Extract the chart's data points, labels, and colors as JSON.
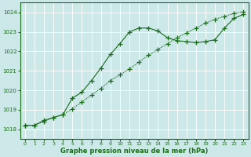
{
  "line1_x": [
    0,
    1,
    2,
    3,
    4,
    5,
    6,
    7,
    8,
    9,
    10,
    11,
    12,
    13,
    14,
    15,
    16,
    17,
    18,
    19,
    20,
    21,
    22,
    23
  ],
  "line1_y": [
    1018.2,
    1018.2,
    1018.45,
    1018.6,
    1018.75,
    1019.6,
    1019.9,
    1020.5,
    1021.15,
    1021.85,
    1022.4,
    1023.0,
    1023.2,
    1023.2,
    1023.05,
    1022.7,
    1022.55,
    1022.5,
    1022.45,
    1022.5,
    1022.6,
    1023.2,
    1023.7,
    1023.9
  ],
  "line2_x": [
    0,
    1,
    2,
    3,
    4,
    5,
    6,
    7,
    8,
    9,
    10,
    11,
    12,
    13,
    14,
    15,
    16,
    17,
    18,
    19,
    20,
    21,
    22,
    23
  ],
  "line2_y": [
    1018.2,
    1018.2,
    1018.4,
    1018.6,
    1018.75,
    1019.05,
    1019.4,
    1019.75,
    1020.1,
    1020.5,
    1020.8,
    1021.1,
    1021.45,
    1021.8,
    1022.1,
    1022.4,
    1022.7,
    1022.95,
    1023.2,
    1023.45,
    1023.65,
    1023.8,
    1023.95,
    1024.05
  ],
  "line_color": "#1a6b1a",
  "bg_color": "#cce8e8",
  "grid_color": "#b0d0d0",
  "xlabel": "Graphe pression niveau de la mer (hPa)",
  "ylim": [
    1017.5,
    1024.5
  ],
  "xlim": [
    -0.5,
    23.5
  ],
  "yticks": [
    1018,
    1019,
    1020,
    1021,
    1022,
    1023,
    1024
  ],
  "xticks": [
    0,
    1,
    2,
    3,
    4,
    5,
    6,
    7,
    8,
    9,
    10,
    11,
    12,
    13,
    14,
    15,
    16,
    17,
    18,
    19,
    20,
    21,
    22,
    23
  ]
}
